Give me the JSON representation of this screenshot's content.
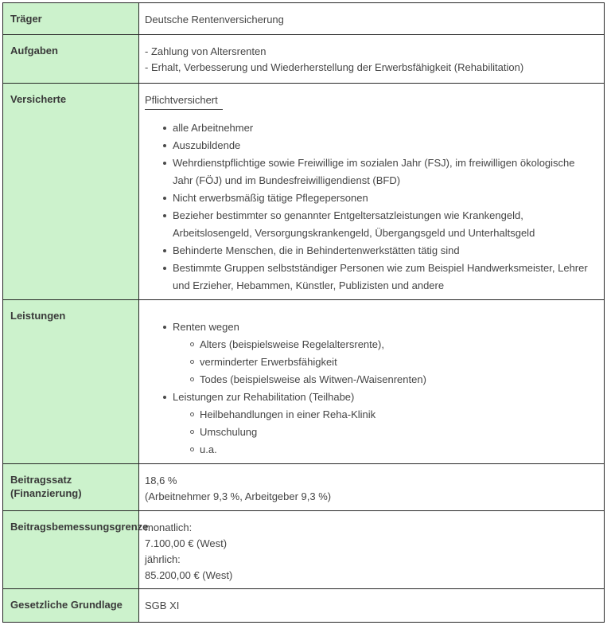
{
  "colors": {
    "label_cell_background": "#ccf2cc",
    "table_border": "#262626",
    "label_text": "#3a3a3a",
    "body_text": "#454545",
    "page_background": "#ffffff"
  },
  "table": {
    "rows": [
      {
        "id": "traeger",
        "label": "Träger",
        "lines": [
          "Deutsche Rentenversicherung"
        ]
      },
      {
        "id": "aufgaben",
        "label": "Aufgaben",
        "lines": [
          "- Zahlung von Altersrenten",
          "- Erhalt, Verbesserung und Wiederherstellung der Erwerbsfähigkeit (Rehabilitation)"
        ]
      },
      {
        "id": "versicherte",
        "label": "Versicherte",
        "heading": "Pflichtversichert",
        "list": [
          {
            "text": "alle Arbeitnehmer"
          },
          {
            "text": "Auszubildende"
          },
          {
            "text": "Wehrdienstpflichtige sowie Freiwillige im sozialen Jahr (FSJ), im freiwilligen ökologische Jahr (FÖJ) und im Bundesfreiwilligendienst (BFD)"
          },
          {
            "text": "Nicht erwerbsmäßig tätige Pflegepersonen"
          },
          {
            "text": "Bezieher bestimmter so genannter Entgeltersatzleistungen wie Krankengeld, Arbeitslosengeld, Versorgungskrankengeld, Übergangsgeld und Unterhaltsgeld"
          },
          {
            "text": "Behinderte Menschen, die in Behindertenwerkstätten tätig sind"
          },
          {
            "text": "Bestimmte Gruppen selbstständiger Personen wie zum Beispiel Handwerksmeister, Lehrer und Erzieher, Hebammen, Künstler, Publizisten und andere"
          }
        ]
      },
      {
        "id": "leistungen",
        "label": "Leistungen",
        "list": [
          {
            "text": "Renten wegen",
            "subitems": [
              "Alters (beispielsweise Regelaltersrente),",
              "verminderter Erwerbsfähigkeit",
              "Todes (beispielsweise als Witwen-/Waisenrenten)"
            ]
          },
          {
            "text": "Leistungen zur Rehabilitation (Teilhabe)",
            "subitems": [
              "Heilbehandlungen in einer Reha-Klinik",
              "Umschulung",
              "u.a."
            ]
          }
        ]
      },
      {
        "id": "beitragssatz",
        "label": "Beitragssatz (Finanzierung)",
        "lines": [
          "18,6 %",
          "(Arbeitnehmer 9,3 %, Arbeitgeber 9,3 %)"
        ]
      },
      {
        "id": "beitragsbemessungsgrenze",
        "label": "Beitragsbemessungsgrenze",
        "lines": [
          "monatlich:",
          "7.100,00 € (West)",
          "jährlich:",
          "85.200,00 € (West)"
        ]
      },
      {
        "id": "gesetzliche-grundlage",
        "label": "Gesetzliche Grundlage",
        "lines": [
          "SGB XI"
        ]
      }
    ]
  }
}
